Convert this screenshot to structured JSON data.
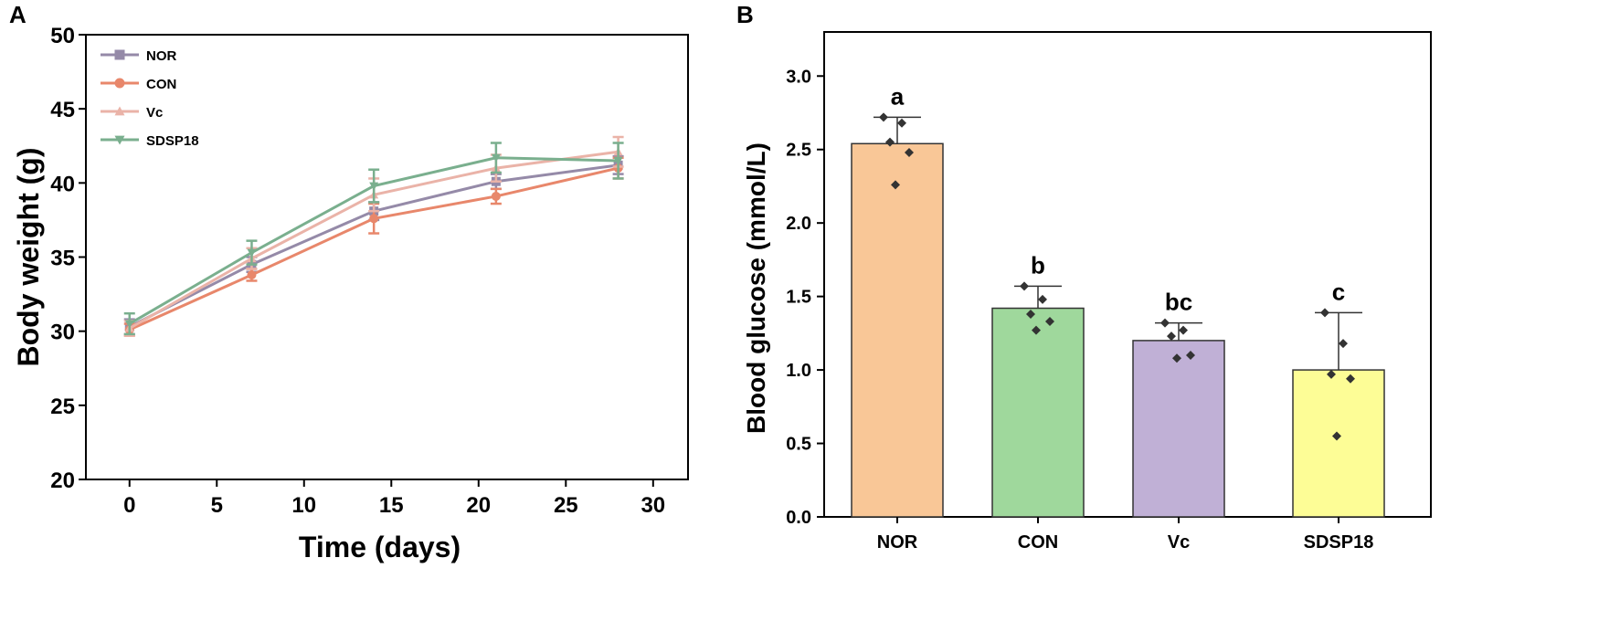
{
  "chart_data": [
    {
      "panel": "A",
      "type": "line",
      "xlabel": "Time (days)",
      "ylabel": "Body  weight (g)",
      "xlim": [
        -2.5,
        32
      ],
      "ylim": [
        20,
        50
      ],
      "x_ticks": [
        0,
        5,
        10,
        15,
        20,
        25,
        30
      ],
      "y_ticks": [
        20,
        25,
        30,
        35,
        40,
        45,
        50
      ],
      "legend_position": "top-left",
      "x": [
        0,
        7,
        14,
        21,
        28
      ],
      "series": [
        {
          "name": "NOR",
          "marker": "square",
          "color": "#958aa8",
          "values": [
            30.3,
            34.5,
            38.1,
            40.1,
            41.2
          ],
          "errors": [
            0.5,
            0.5,
            0.6,
            0.5,
            0.6
          ]
        },
        {
          "name": "CON",
          "marker": "circle",
          "color": "#e8876b",
          "values": [
            30.1,
            33.8,
            37.6,
            39.1,
            41.0
          ],
          "errors": [
            0.4,
            0.4,
            1.0,
            0.5,
            0.7
          ]
        },
        {
          "name": "Vc",
          "marker": "triangle-up",
          "color": "#eab3a8",
          "values": [
            30.2,
            34.9,
            39.2,
            41.0,
            42.1
          ],
          "errors": [
            0.5,
            0.7,
            1.1,
            0.9,
            1.0
          ]
        },
        {
          "name": "SDSP18",
          "marker": "triangle-down",
          "color": "#7aaf8e",
          "values": [
            30.5,
            35.3,
            39.8,
            41.7,
            41.5
          ],
          "errors": [
            0.7,
            0.8,
            1.1,
            1.0,
            1.2
          ]
        }
      ]
    },
    {
      "panel": "B",
      "type": "bar",
      "ylabel": "Blood glucose (mmol/L)",
      "ylim": [
        0,
        3.3
      ],
      "y_ticks": [
        "0.0",
        "0.5",
        "1.0",
        "1.5",
        "2.0",
        "2.5",
        "3.0"
      ],
      "categories": [
        "NOR",
        "CON",
        "Vc",
        "SDSP18"
      ],
      "values": [
        2.54,
        1.42,
        1.2,
        1.0
      ],
      "errors": [
        0.18,
        0.15,
        0.12,
        0.39
      ],
      "significance": [
        "a",
        "b",
        "bc",
        "c"
      ],
      "colors": [
        "#f9c797",
        "#9fd89c",
        "#c0b0d6",
        "#fdfd96"
      ],
      "points": [
        [
          2.72,
          2.68,
          2.55,
          2.48,
          2.26
        ],
        [
          1.57,
          1.48,
          1.38,
          1.33,
          1.27
        ],
        [
          1.32,
          1.27,
          1.23,
          1.1,
          1.08
        ],
        [
          1.39,
          1.18,
          0.97,
          0.94,
          0.55
        ]
      ]
    }
  ]
}
